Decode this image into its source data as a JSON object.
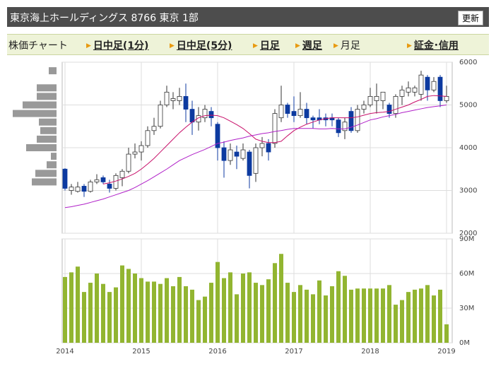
{
  "header": {
    "title": "東京海上ホールディングス  8766  東京 1部",
    "button": "更新"
  },
  "tabs": [
    {
      "label": "株価チャート",
      "marker": false,
      "link": false
    },
    {
      "label": "日中足(1分)",
      "marker": true,
      "link": true
    },
    {
      "label": "日中足(5分)",
      "marker": true,
      "link": true
    },
    {
      "label": "日足",
      "marker": true,
      "link": true
    },
    {
      "label": "週足",
      "marker": true,
      "link": true
    },
    {
      "label": "月足",
      "marker": true,
      "link": false
    },
    {
      "label": "証金･信用",
      "marker": true,
      "link": true
    }
  ],
  "chart_data": {
    "type": "candlestick",
    "categories": [
      "2014",
      null,
      null,
      null,
      null,
      null,
      null,
      null,
      null,
      null,
      null,
      null,
      "2015",
      null,
      null,
      null,
      null,
      null,
      null,
      null,
      null,
      null,
      null,
      null,
      "2016",
      null,
      null,
      null,
      null,
      null,
      null,
      null,
      null,
      null,
      null,
      null,
      "2017",
      null,
      null,
      null,
      null,
      null,
      null,
      null,
      null,
      null,
      null,
      null,
      "2018",
      null,
      null,
      null,
      null,
      null,
      null,
      null,
      null,
      null,
      null,
      null,
      "2019"
    ],
    "open": [
      3500,
      3000,
      2980,
      3100,
      2980,
      3200,
      3300,
      3150,
      3050,
      3300,
      3450,
      3850,
      3900,
      4050,
      4400,
      4500,
      5000,
      5100,
      5100,
      5200,
      4900,
      4600,
      4700,
      4850,
      4550,
      4000,
      3700,
      3900,
      3750,
      3900,
      3400,
      4000,
      4100,
      4100,
      4700,
      5000,
      4850,
      4750,
      4900,
      4700,
      4700,
      4700,
      4700,
      4650,
      4400,
      4850,
      4400,
      4900,
      5000,
      5100,
      5100,
      5000,
      4800,
      5200,
      5300,
      5300,
      5250,
      5650,
      5350,
      5650,
      5100
    ],
    "high": [
      3520,
      3150,
      3200,
      3150,
      3250,
      3380,
      3350,
      3250,
      3400,
      3500,
      4000,
      4100,
      4150,
      4500,
      4700,
      5100,
      5450,
      5300,
      5400,
      5500,
      5100,
      4950,
      5000,
      4950,
      4600,
      4150,
      4100,
      4050,
      4100,
      3950,
      4100,
      4250,
      4200,
      4900,
      5450,
      5050,
      5200,
      5300,
      5050,
      4750,
      4900,
      4800,
      4800,
      4700,
      4700,
      4950,
      5000,
      5100,
      5400,
      5500,
      5300,
      5050,
      5250,
      5450,
      5550,
      5450,
      5800,
      5700,
      5650,
      5700,
      5450
    ],
    "low": [
      3000,
      2900,
      2950,
      2850,
      2950,
      3150,
      3150,
      2950,
      3000,
      3100,
      3400,
      3750,
      3700,
      4000,
      4300,
      4450,
      4950,
      4900,
      5000,
      4600,
      4300,
      4400,
      4600,
      4500,
      3700,
      3300,
      3600,
      3500,
      3700,
      3050,
      3200,
      3800,
      3700,
      4000,
      4600,
      4700,
      4600,
      4700,
      4550,
      4450,
      4550,
      4500,
      4500,
      4250,
      4200,
      4350,
      4350,
      4800,
      4950,
      4800,
      4900,
      4700,
      4700,
      5000,
      5200,
      5200,
      5100,
      5100,
      5300,
      4950,
      5050
    ],
    "close": [
      3050,
      3080,
      3080,
      2980,
      3200,
      3250,
      3200,
      3050,
      3350,
      3450,
      3850,
      3900,
      4050,
      4400,
      4500,
      5000,
      5300,
      5150,
      5200,
      4900,
      4600,
      4750,
      4900,
      4700,
      4000,
      3700,
      3950,
      3800,
      3950,
      3350,
      4000,
      4100,
      3900,
      4800,
      5000,
      4800,
      4750,
      4900,
      4700,
      4650,
      4650,
      4650,
      4650,
      4350,
      4600,
      4400,
      4900,
      5000,
      5200,
      5200,
      5300,
      4800,
      5200,
      5350,
      5400,
      5400,
      5700,
      5350,
      5550,
      5100,
      5200
    ],
    "up_color": "#ffffff",
    "down_color": "#0d3aa0",
    "lines": [
      {
        "color": "#c8106a",
        "values": [
          null,
          null,
          null,
          null,
          null,
          null,
          3150,
          3180,
          3220,
          3270,
          3330,
          3400,
          3500,
          3620,
          3750,
          3900,
          4050,
          4200,
          4350,
          4480,
          4600,
          4700,
          4750,
          4760,
          4750,
          4700,
          4620,
          4540,
          4450,
          4330,
          4200,
          4150,
          4120,
          4120,
          4150,
          4280,
          4400,
          4480,
          4550,
          4600,
          4650,
          4680,
          4700,
          4700,
          4700,
          4700,
          4720,
          4760,
          4800,
          4820,
          4830,
          4850,
          4900,
          4950,
          5000,
          5070,
          5130,
          5200,
          5220,
          5210,
          5200
        ]
      },
      {
        "color": "#b020c8",
        "values": [
          2600,
          2620,
          2650,
          2680,
          2720,
          2760,
          2800,
          2850,
          2900,
          2950,
          3000,
          3070,
          3150,
          3230,
          3320,
          3410,
          3500,
          3600,
          3700,
          3770,
          3840,
          3900,
          3960,
          4030,
          4100,
          4130,
          4170,
          4200,
          4230,
          4270,
          4300,
          4330,
          4350,
          4380,
          4400,
          4430,
          4450,
          4450,
          4450,
          4450,
          4440,
          4440,
          4450,
          4440,
          4440,
          4480,
          4530,
          4590,
          4650,
          4680,
          4720,
          4750,
          4780,
          4820,
          4850,
          4880,
          4910,
          4940,
          4960,
          4980,
          5000
        ]
      }
    ],
    "ylim": [
      2000,
      6000
    ],
    "yticks": [
      2000,
      3000,
      4000,
      5000,
      6000
    ],
    "grid": true,
    "profile": {
      "color": "#999999",
      "levels": [
        5800,
        5400,
        5200,
        5000,
        4800,
        4600,
        4400,
        4200,
        4000,
        3800,
        3600,
        3400,
        3200
      ],
      "values": [
        11,
        28,
        28,
        48,
        62,
        25,
        23,
        28,
        43,
        8,
        14,
        30,
        35
      ]
    },
    "volume": {
      "color": "#92b531",
      "values": [
        57,
        61,
        66,
        44,
        52,
        60,
        51,
        44,
        48,
        67,
        64,
        60,
        56,
        53,
        53,
        51,
        56,
        49,
        57,
        49,
        46,
        37,
        40,
        52,
        70,
        56,
        61,
        42,
        60,
        61,
        52,
        50,
        55,
        69,
        77,
        52,
        44,
        50,
        46,
        42,
        54,
        41,
        49,
        62,
        58,
        46,
        47,
        47,
        47,
        47,
        47,
        50,
        33,
        37,
        44,
        46,
        47,
        50,
        41,
        46,
        16
      ],
      "ylim": [
        0,
        90
      ],
      "yticks": [
        {
          "value": 0,
          "label": "0M"
        },
        {
          "value": 30,
          "label": "30M"
        },
        {
          "value": 60,
          "label": "60M"
        },
        {
          "value": 90,
          "label": "90M"
        }
      ]
    }
  }
}
